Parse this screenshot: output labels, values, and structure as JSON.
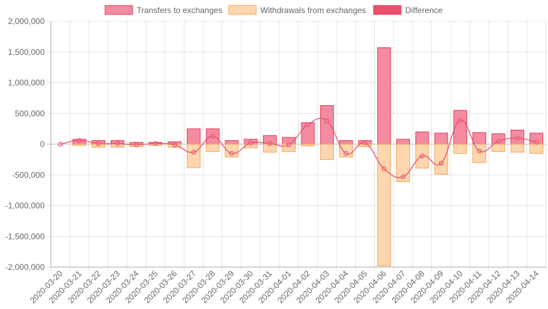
{
  "chart_data": {
    "type": "bar",
    "categories": [
      "2020-03-20",
      "2020-03-21",
      "2020-03-22",
      "2020-03-23",
      "2020-03-24",
      "2020-03-25",
      "2020-03-26",
      "2020-03-27",
      "2020-03-28",
      "2020-03-29",
      "2020-03-30",
      "2020-03-31",
      "2020-04-01",
      "2020-04-02",
      "2020-04-03",
      "2020-04-04",
      "2020-04-05",
      "2020-04-06",
      "2020-04-07",
      "2020-04-08",
      "2020-04-09",
      "2020-04-10",
      "2020-04-11",
      "2020-04-12",
      "2020-04-13",
      "2020-04-14"
    ],
    "series": [
      {
        "name": "Transfers to exchanges",
        "type": "bar",
        "color": "#f48ba0",
        "border": "#e0405e",
        "values": [
          0,
          80000,
          60000,
          60000,
          30000,
          30000,
          40000,
          250000,
          250000,
          60000,
          80000,
          140000,
          110000,
          350000,
          630000,
          60000,
          60000,
          1570000,
          80000,
          200000,
          180000,
          550000,
          190000,
          170000,
          230000,
          180000
        ]
      },
      {
        "name": "Withdrawals from exchanges",
        "type": "bar",
        "color": "#ffd6ad",
        "border": "#f0a860",
        "values": [
          0,
          -20000,
          -50000,
          -50000,
          -40000,
          -20000,
          -50000,
          -380000,
          -120000,
          -210000,
          -60000,
          -130000,
          -120000,
          -30000,
          -250000,
          -210000,
          -40000,
          -1980000,
          -610000,
          -390000,
          -490000,
          -150000,
          -300000,
          -120000,
          -130000,
          -150000
        ]
      },
      {
        "name": "Difference",
        "type": "line",
        "color": "#e8506e",
        "values": [
          0,
          60000,
          10000,
          10000,
          -10000,
          10000,
          -10000,
          -130000,
          130000,
          -150000,
          20000,
          10000,
          -10000,
          320000,
          380000,
          -150000,
          20000,
          -400000,
          -530000,
          -190000,
          -310000,
          390000,
          -110000,
          50000,
          100000,
          30000
        ]
      }
    ],
    "y_ticks": [
      "2,000,000",
      "1,500,000",
      "1,000,000",
      "500,000",
      "0",
      "-500,000",
      "-1,000,000",
      "-1,500,000",
      "-2,000,000"
    ],
    "ylim": [
      -2000000,
      2000000
    ],
    "grid": true,
    "legend_position": "top"
  }
}
